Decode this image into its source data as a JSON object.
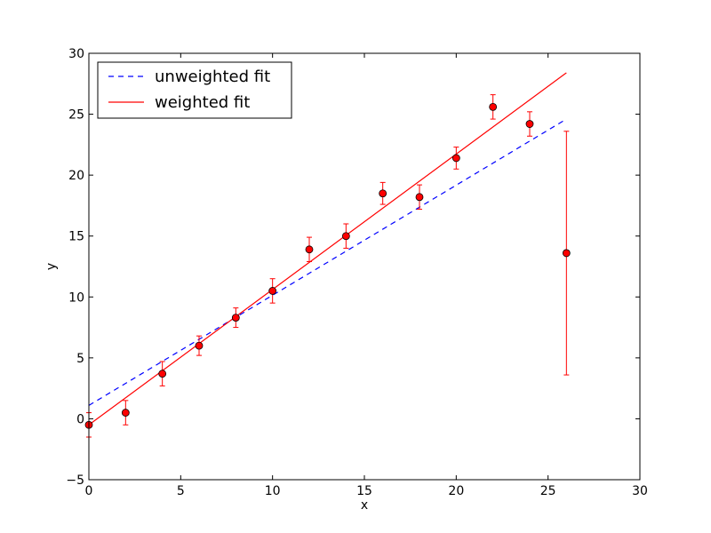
{
  "chart_data": {
    "type": "scatter",
    "xlabel": "x",
    "ylabel": "y",
    "xlim": [
      0,
      30
    ],
    "ylim": [
      -5,
      30
    ],
    "x_ticks": [
      0,
      5,
      10,
      15,
      20,
      25,
      30
    ],
    "y_ticks": [
      -5,
      0,
      5,
      10,
      15,
      20,
      25,
      30
    ],
    "x_tick_labels": [
      "0",
      "5",
      "10",
      "15",
      "20",
      "25",
      "30"
    ],
    "y_tick_labels": [
      "−5",
      "0",
      "5",
      "10",
      "15",
      "20",
      "25",
      "30"
    ],
    "grid": false,
    "legend_position": "top-left",
    "series": [
      {
        "name": "unweighted fit",
        "kind": "line",
        "style": "dashed",
        "color": "#0000ff",
        "x": [
          0,
          26
        ],
        "y": [
          1.1,
          24.6
        ]
      },
      {
        "name": "weighted fit",
        "kind": "line",
        "style": "solid",
        "color": "#ff0000",
        "x": [
          0,
          26
        ],
        "y": [
          -0.5,
          28.4
        ]
      },
      {
        "kind": "errorbar-points",
        "color": "#ff0000",
        "x": [
          0,
          2,
          4,
          6,
          8,
          10,
          12,
          14,
          16,
          18,
          20,
          22,
          24,
          26
        ],
        "y": [
          -0.5,
          0.5,
          3.7,
          6.0,
          8.3,
          10.5,
          13.9,
          15.0,
          18.5,
          18.2,
          21.4,
          25.6,
          24.2,
          13.6
        ],
        "yerr": [
          1.0,
          1.0,
          1.0,
          0.8,
          0.8,
          1.0,
          1.0,
          1.0,
          0.9,
          1.0,
          0.9,
          1.0,
          1.0,
          10.0
        ]
      }
    ]
  }
}
